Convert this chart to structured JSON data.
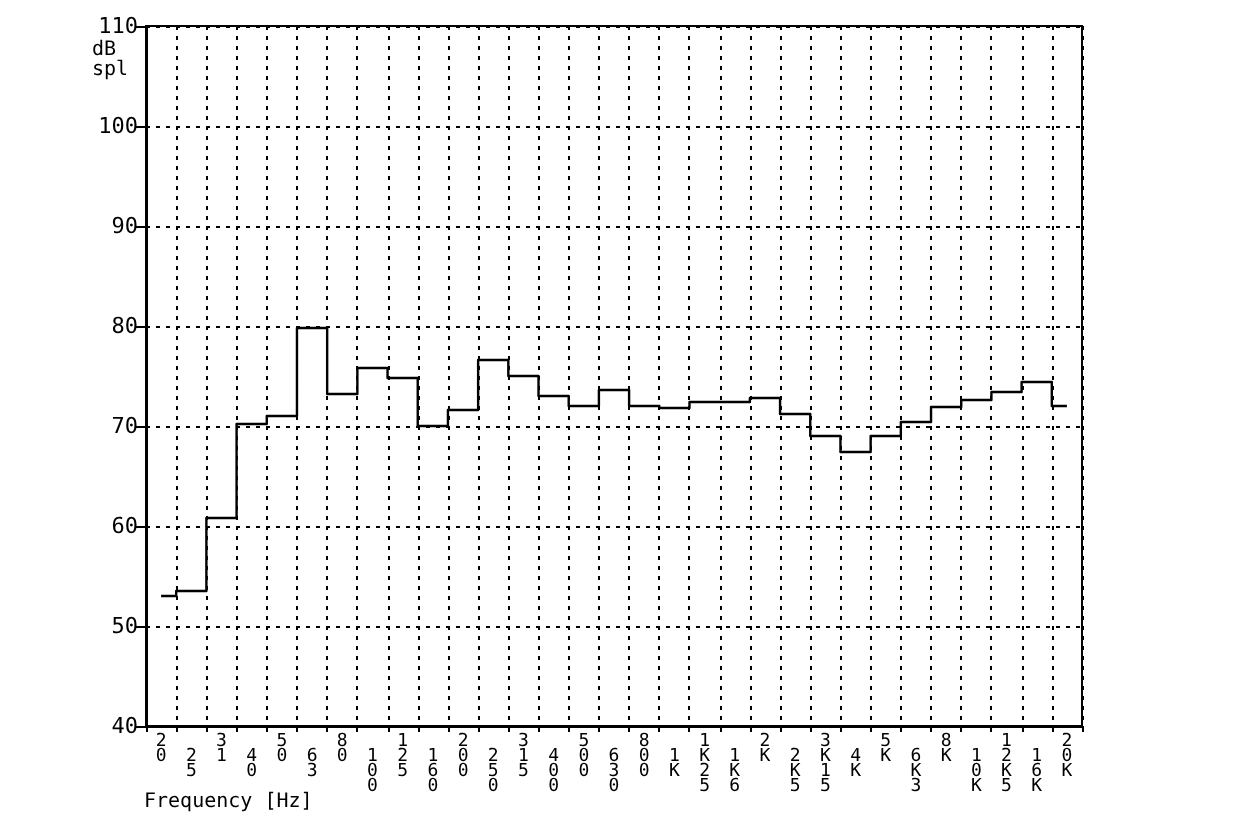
{
  "chart_data": {
    "type": "step",
    "xlabel": "Frequency [Hz]",
    "ylabel": "dB spl",
    "categories": [
      "20",
      "25",
      "31",
      "40",
      "50",
      "63",
      "80",
      "100",
      "125",
      "160",
      "200",
      "250",
      "315",
      "400",
      "500",
      "630",
      "800",
      "1K",
      "1K25",
      "1K6",
      "2K",
      "2K5",
      "3K15",
      "4K",
      "5K",
      "6K3",
      "8K",
      "10K",
      "12K5",
      "16K",
      "20K"
    ],
    "series": [
      {
        "color": "#000000",
        "values": [
          53,
          53.5,
          60.8,
          70.2,
          71,
          79.8,
          73.2,
          75.8,
          74.8,
          70,
          71.6,
          76.6,
          75,
          73,
          72,
          73.6,
          72,
          71.8,
          72.4,
          72.4,
          72.8,
          71.2,
          69,
          67.4,
          69,
          70.4,
          71.9,
          72.6,
          73.4,
          74.4,
          72
        ]
      }
    ],
    "ylim": [
      40,
      110
    ],
    "yticks": [
      40,
      50,
      60,
      70,
      80,
      90,
      100,
      110
    ],
    "grid": true,
    "marker": "none",
    "line_style": "solid"
  }
}
